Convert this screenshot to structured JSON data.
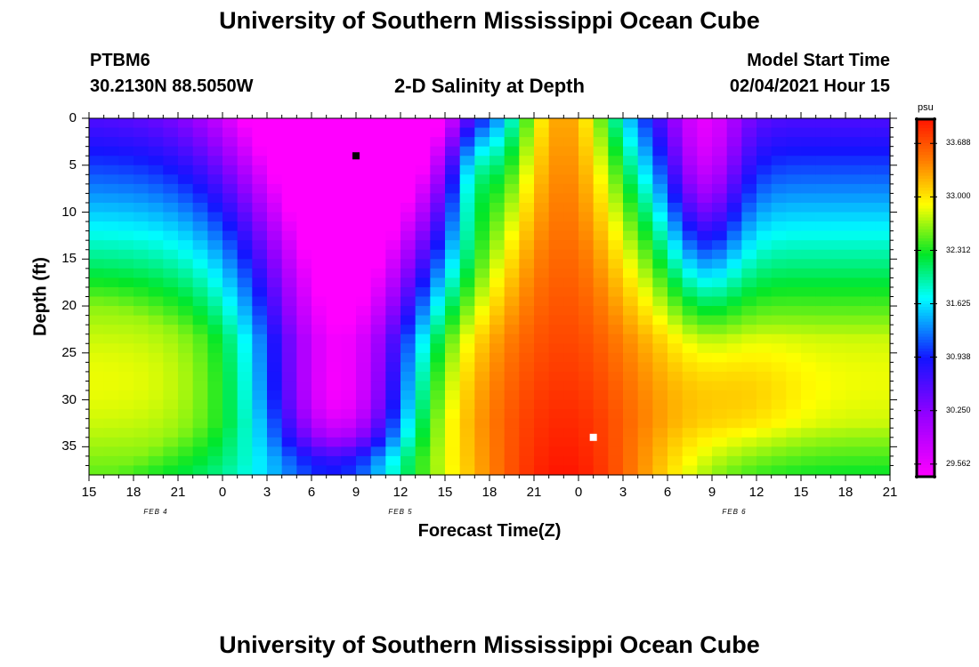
{
  "header": {
    "title_top": "University of Southern Mississippi Ocean Cube",
    "title_bottom": "University of Southern Mississippi Ocean Cube",
    "station": "PTBM6",
    "location": "30.2130N 88.5050W",
    "plot_title": "2-D Salinity at Depth",
    "start_label": "Model Start Time",
    "start_value": "02/04/2021 Hour 15"
  },
  "chart_data": {
    "type": "heatmap",
    "title": "2-D Salinity at Depth",
    "xlabel": "Forecast Time(Z)",
    "ylabel": "Depth (ft)",
    "x_tick_labels": [
      "15",
      "18",
      "21",
      "0",
      "3",
      "6",
      "9",
      "12",
      "15",
      "18",
      "21",
      "0",
      "3",
      "6",
      "9",
      "12",
      "15",
      "18",
      "21"
    ],
    "x_range_hours": [
      0,
      54
    ],
    "date_labels": [
      {
        "text": "FEB 4",
        "hour": 4.5
      },
      {
        "text": "FEB 5",
        "hour": 21
      },
      {
        "text": "FEB 6",
        "hour": 43.5
      }
    ],
    "y_ticks": [
      0,
      5,
      10,
      15,
      20,
      25,
      30,
      35
    ],
    "y_range": [
      0,
      38
    ],
    "y_inverted": true,
    "colorbar": {
      "unit": "psu",
      "min": 29.4,
      "max": 34.0,
      "tick_labels": [
        "33.688",
        "33.000",
        "32.312",
        "31.625",
        "30.938",
        "30.250",
        "29.562"
      ],
      "tick_values": [
        33.688,
        33.0,
        32.312,
        31.625,
        30.938,
        30.25,
        29.562
      ]
    },
    "markers": [
      {
        "kind": "min",
        "color": "#000000",
        "hour": 18,
        "depth": 4
      },
      {
        "kind": "max",
        "color": "#ffffff",
        "hour": 34,
        "depth": 34
      }
    ]
  }
}
